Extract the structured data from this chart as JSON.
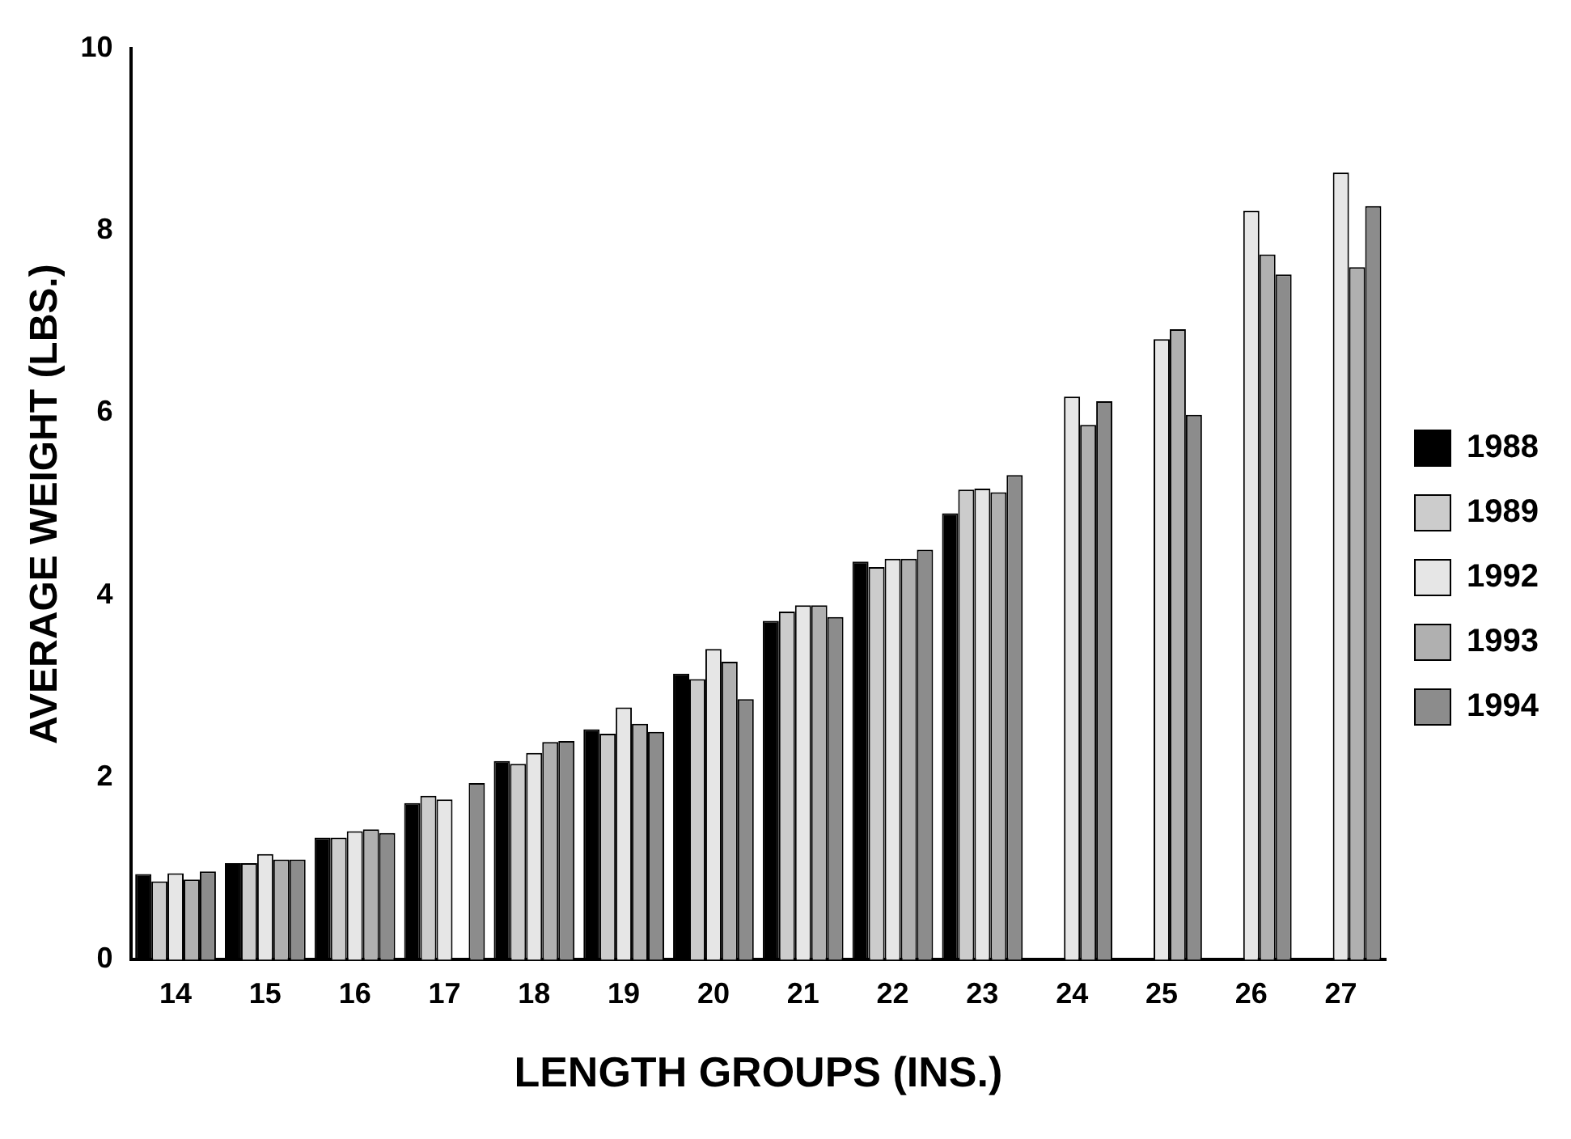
{
  "chart_data": {
    "type": "bar",
    "xlabel": "LENGTH GROUPS (INS.)",
    "ylabel": "AVERAGE WEIGHT (LBS.)",
    "categories": [
      "14",
      "15",
      "16",
      "17",
      "18",
      "19",
      "20",
      "21",
      "22",
      "23",
      "24",
      "25",
      "26",
      "27"
    ],
    "series": [
      {
        "name": "1988",
        "color": "#000000",
        "values": [
          0.94,
          1.06,
          1.34,
          1.72,
          2.18,
          2.53,
          3.14,
          3.72,
          4.37,
          4.9,
          null,
          null,
          null,
          null
        ]
      },
      {
        "name": "1989",
        "color": "#cccccc",
        "values": [
          0.86,
          1.06,
          1.34,
          1.8,
          2.15,
          2.48,
          3.08,
          3.82,
          4.31,
          5.16,
          null,
          null,
          null,
          null
        ]
      },
      {
        "name": "1992",
        "color": "#e6e6e6",
        "values": [
          0.95,
          1.16,
          1.41,
          1.76,
          2.27,
          2.77,
          3.41,
          3.89,
          4.4,
          5.17,
          6.18,
          6.81,
          8.22,
          8.64
        ]
      },
      {
        "name": "1993",
        "color": "#b0b0b0",
        "values": [
          0.88,
          1.1,
          1.43,
          null,
          2.39,
          2.59,
          3.27,
          3.89,
          4.4,
          5.13,
          5.87,
          6.92,
          7.74,
          7.6
        ]
      },
      {
        "name": "1994",
        "color": "#8c8c8c",
        "values": [
          0.97,
          1.1,
          1.39,
          1.94,
          2.4,
          2.5,
          2.86,
          3.76,
          4.5,
          5.32,
          6.13,
          5.98,
          7.52,
          8.27
        ]
      }
    ],
    "ylim": [
      0,
      10
    ],
    "yticks": [
      0,
      2,
      4,
      6,
      8,
      10
    ],
    "grid": false,
    "legend": "right"
  }
}
